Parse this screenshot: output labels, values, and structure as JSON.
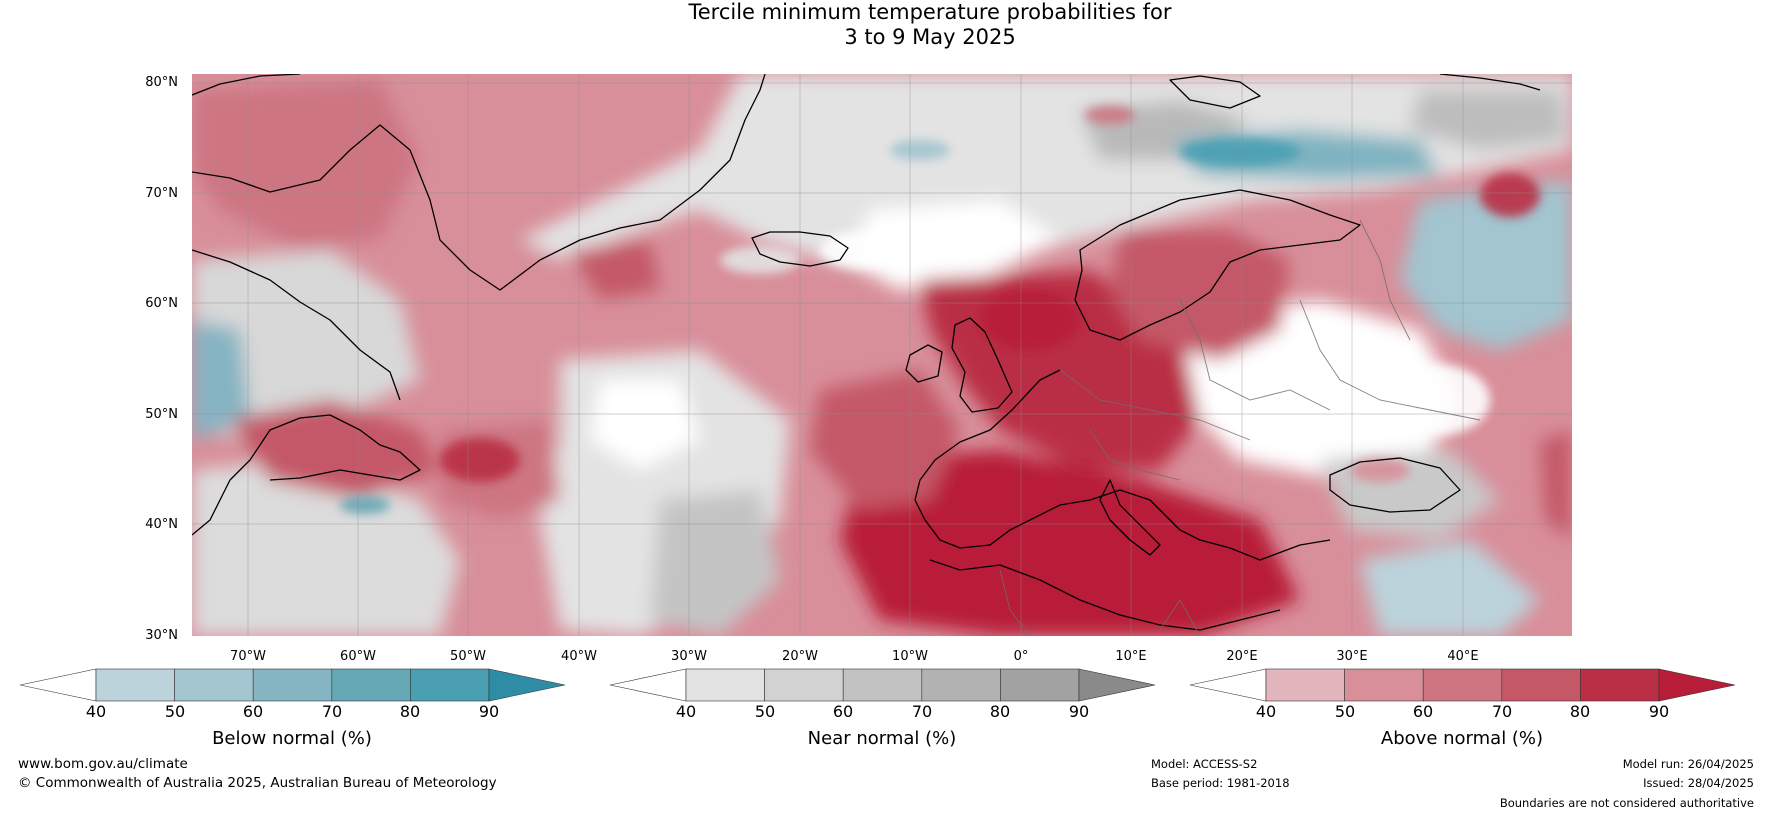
{
  "title": {
    "line1": "Tercile minimum temperature probabilities for",
    "line2": "3 to 9 May 2025"
  },
  "map": {
    "lat_labels": [
      "80°N",
      "70°N",
      "60°N",
      "50°N",
      "40°N",
      "30°N"
    ],
    "lon_labels": [
      "70°W",
      "60°W",
      "50°W",
      "40°W",
      "30°W",
      "20°W",
      "10°W",
      "0°",
      "10°E",
      "20°E",
      "30°E",
      "40°E"
    ],
    "extent": {
      "lon": [
        -80,
        45
      ],
      "lat": [
        30,
        81
      ]
    },
    "boundaries_note": "Boundaries are not considered authoritative"
  },
  "legends": [
    {
      "id": "below",
      "title": "Below normal (%)",
      "ticks": [
        "40",
        "50",
        "60",
        "70",
        "80",
        "90"
      ],
      "colors": [
        "#ffffff",
        "#bcd3db",
        "#a2c5cf",
        "#85b4c2",
        "#65a8b6",
        "#4aa0b2",
        "#2e8da5"
      ]
    },
    {
      "id": "near",
      "title": "Near normal (%)",
      "ticks": [
        "40",
        "50",
        "60",
        "70",
        "80",
        "90"
      ],
      "colors": [
        "#ffffff",
        "#e3e3e3",
        "#d2d2d2",
        "#c2c2c2",
        "#b2b2b2",
        "#a2a2a2",
        "#8a8a8a"
      ]
    },
    {
      "id": "above",
      "title": "Above normal (%)",
      "ticks": [
        "40",
        "50",
        "60",
        "70",
        "80",
        "90"
      ],
      "colors": [
        "#ffffff",
        "#e3b6bd",
        "#d88f9a",
        "#cd7682",
        "#c45867",
        "#ba2f45",
        "#b81d38"
      ]
    }
  ],
  "footer": {
    "website": "www.bom.gov.au/climate",
    "copyright": "© Commonwealth of Australia 2025, Australian Bureau of Meteorology",
    "model": "Model: ACCESS-S2",
    "base_period": "Base period: 1981-2018",
    "model_run": "Model run: 26/04/2025",
    "issued": "Issued: 28/04/2025",
    "boundaries": "Boundaries are not considered authoritative"
  }
}
